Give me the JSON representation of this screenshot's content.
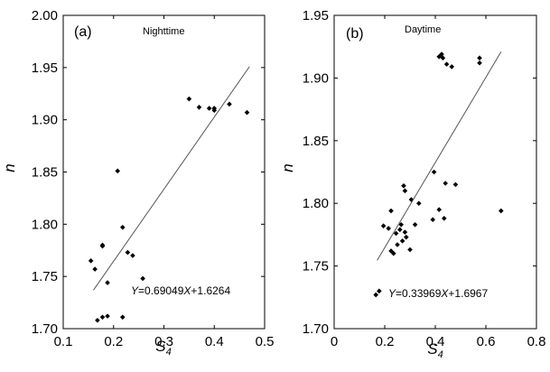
{
  "chart_data": [
    {
      "type": "scatter",
      "panel_label": "(a)",
      "title": "Nighttime",
      "xlabel": {
        "base": "S",
        "sub": "4"
      },
      "ylabel": "n",
      "xlim": [
        0.1,
        0.5
      ],
      "ylim": [
        1.7,
        2.0
      ],
      "xticks": [
        0.1,
        0.2,
        0.3,
        0.4,
        0.5
      ],
      "xtick_labels": [
        "0.1",
        "0.2",
        "0.3",
        "0.4",
        "0.5"
      ],
      "yticks": [
        1.7,
        1.75,
        1.8,
        1.85,
        1.9,
        1.95,
        2.0
      ],
      "ytick_labels": [
        "1.70",
        "1.75",
        "1.80",
        "1.85",
        "1.90",
        "1.95",
        "2.00"
      ],
      "grid": false,
      "points": [
        [
          0.155,
          1.765
        ],
        [
          0.163,
          1.757
        ],
        [
          0.168,
          1.708
        ],
        [
          0.178,
          1.78
        ],
        [
          0.178,
          1.779
        ],
        [
          0.178,
          1.711
        ],
        [
          0.188,
          1.744
        ],
        [
          0.188,
          1.712
        ],
        [
          0.208,
          1.851
        ],
        [
          0.218,
          1.797
        ],
        [
          0.218,
          1.711
        ],
        [
          0.228,
          1.773
        ],
        [
          0.238,
          1.77
        ],
        [
          0.258,
          1.748
        ],
        [
          0.35,
          1.92
        ],
        [
          0.37,
          1.912
        ],
        [
          0.39,
          1.911
        ],
        [
          0.4,
          1.911
        ],
        [
          0.4,
          1.909
        ],
        [
          0.43,
          1.915
        ],
        [
          0.465,
          1.907
        ]
      ],
      "fit": {
        "slope": 0.69049,
        "intercept": 1.6264,
        "x_range": [
          0.16,
          0.47
        ],
        "equation": "Y=0.69049X+1.6264"
      }
    },
    {
      "type": "scatter",
      "panel_label": "(b)",
      "title": "Daytime",
      "xlabel": {
        "base": "S",
        "sub": "4"
      },
      "ylabel": "n",
      "xlim": [
        0,
        0.8
      ],
      "ylim": [
        1.7,
        1.95
      ],
      "xticks": [
        0,
        0.2,
        0.4,
        0.6,
        0.8
      ],
      "xtick_labels": [
        "0",
        "0.2",
        "0.4",
        "0.6",
        "0.8"
      ],
      "yticks": [
        1.7,
        1.75,
        1.8,
        1.85,
        1.9,
        1.95
      ],
      "ytick_labels": [
        "1.70",
        "1.75",
        "1.80",
        "1.85",
        "1.90",
        "1.95"
      ],
      "grid": false,
      "points": [
        [
          0.165,
          1.727
        ],
        [
          0.178,
          1.73
        ],
        [
          0.195,
          1.782
        ],
        [
          0.215,
          1.78
        ],
        [
          0.225,
          1.762
        ],
        [
          0.225,
          1.794
        ],
        [
          0.235,
          1.76
        ],
        [
          0.245,
          1.776
        ],
        [
          0.25,
          1.767
        ],
        [
          0.26,
          1.779
        ],
        [
          0.265,
          1.783
        ],
        [
          0.27,
          1.77
        ],
        [
          0.275,
          1.814
        ],
        [
          0.28,
          1.81
        ],
        [
          0.28,
          1.777
        ],
        [
          0.285,
          1.773
        ],
        [
          0.3,
          1.763
        ],
        [
          0.305,
          1.803
        ],
        [
          0.32,
          1.783
        ],
        [
          0.335,
          1.8
        ],
        [
          0.39,
          1.787
        ],
        [
          0.395,
          1.825
        ],
        [
          0.415,
          1.795
        ],
        [
          0.415,
          1.917
        ],
        [
          0.425,
          1.919
        ],
        [
          0.43,
          1.916
        ],
        [
          0.435,
          1.788
        ],
        [
          0.44,
          1.816
        ],
        [
          0.445,
          1.911
        ],
        [
          0.465,
          1.909
        ],
        [
          0.48,
          1.815
        ],
        [
          0.575,
          1.916
        ],
        [
          0.575,
          1.912
        ],
        [
          0.66,
          1.794
        ]
      ],
      "fit": {
        "slope": 0.33969,
        "intercept": 1.6967,
        "x_range": [
          0.17,
          0.66
        ],
        "equation": "Y=0.33969X+1.6967"
      }
    }
  ],
  "ui": {
    "panel_a": {
      "label": "(a)",
      "title": "Nighttime",
      "equation": "Y=0.69049X+1.6264",
      "xlabel": "S",
      "xlabel_sub": "4",
      "ylabel": "n"
    },
    "panel_b": {
      "label": "(b)",
      "title": "Daytime",
      "equation": "Y=0.33969X+1.6967",
      "xlabel": "S",
      "xlabel_sub": "4",
      "ylabel": "n"
    }
  }
}
